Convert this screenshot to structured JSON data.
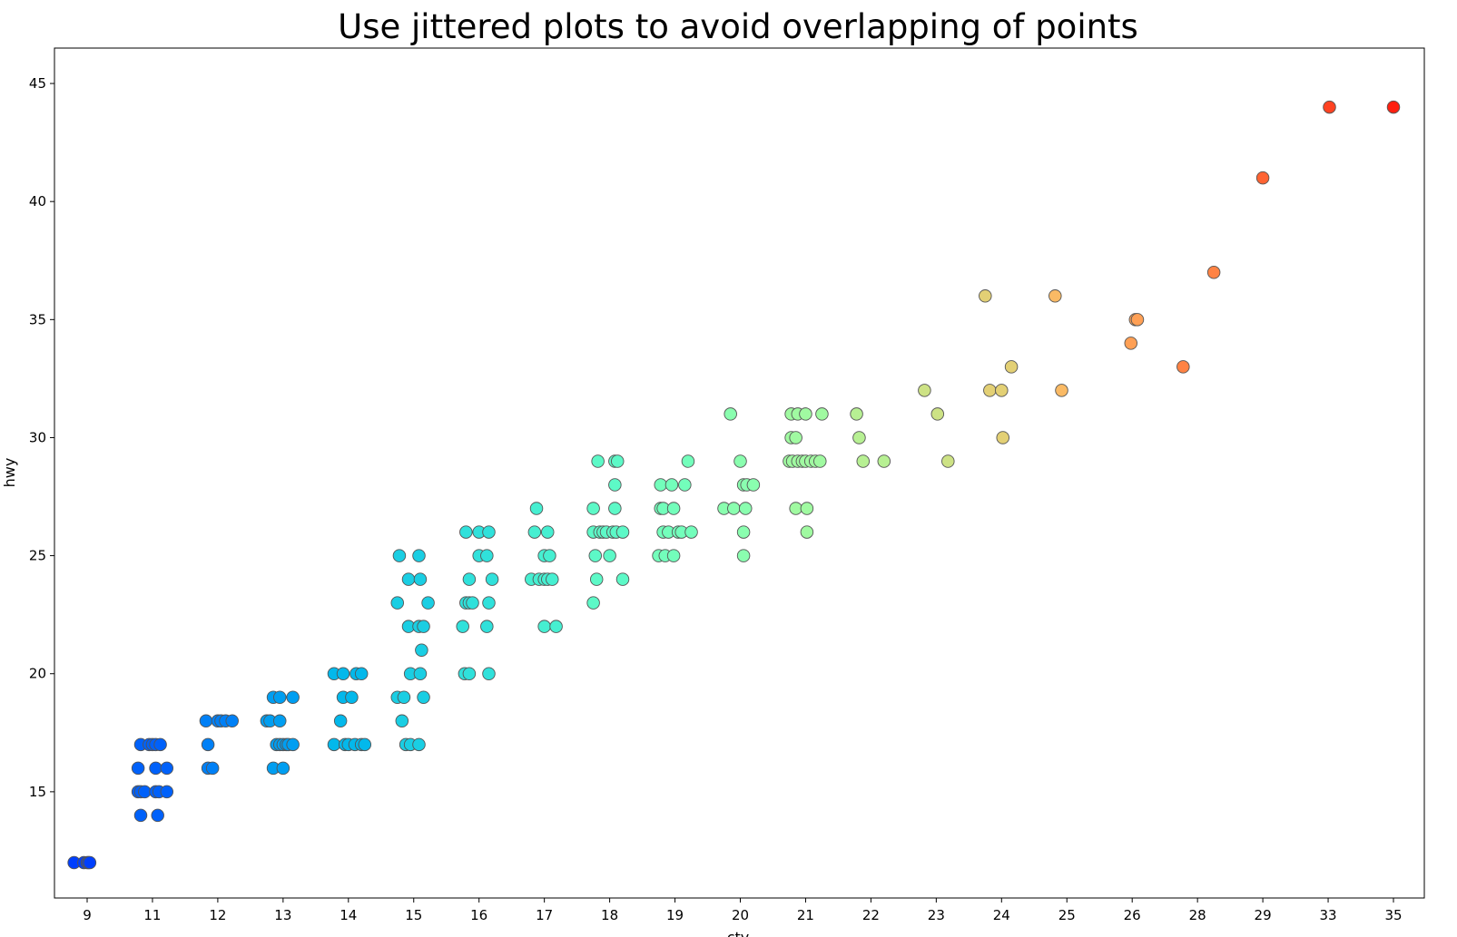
{
  "chart_data": {
    "type": "scatter",
    "title": "Use jittered plots to avoid overlapping of points",
    "xlabel": "cty",
    "ylabel": "hwy",
    "x_categories": [
      "9",
      "11",
      "12",
      "13",
      "14",
      "15",
      "16",
      "17",
      "18",
      "19",
      "20",
      "21",
      "22",
      "23",
      "24",
      "25",
      "26",
      "28",
      "29",
      "33",
      "35"
    ],
    "ylim": [
      10.5,
      46.5
    ],
    "yticks": [
      15,
      20,
      25,
      30,
      35,
      40,
      45
    ],
    "grid": false,
    "colormap": "rainbow",
    "points": [
      {
        "x": "9",
        "y": 12,
        "j": -0.2
      },
      {
        "x": "9",
        "y": 12,
        "j": -0.05
      },
      {
        "x": "9",
        "y": 12,
        "j": 0.0
      },
      {
        "x": "9",
        "y": 12,
        "j": 0.02
      },
      {
        "x": "9",
        "y": 12,
        "j": 0.04
      },
      {
        "x": "11",
        "y": 17,
        "j": -0.18
      },
      {
        "x": "11",
        "y": 17,
        "j": -0.05
      },
      {
        "x": "11",
        "y": 17,
        "j": 0.0
      },
      {
        "x": "11",
        "y": 17,
        "j": 0.05
      },
      {
        "x": "11",
        "y": 17,
        "j": 0.12
      },
      {
        "x": "11",
        "y": 16,
        "j": -0.22
      },
      {
        "x": "11",
        "y": 16,
        "j": 0.05
      },
      {
        "x": "11",
        "y": 16,
        "j": 0.22
      },
      {
        "x": "11",
        "y": 15,
        "j": -0.22
      },
      {
        "x": "11",
        "y": 15,
        "j": -0.18
      },
      {
        "x": "11",
        "y": 15,
        "j": -0.12
      },
      {
        "x": "11",
        "y": 15,
        "j": 0.05
      },
      {
        "x": "11",
        "y": 15,
        "j": 0.1
      },
      {
        "x": "11",
        "y": 15,
        "j": 0.22
      },
      {
        "x": "11",
        "y": 14,
        "j": -0.18
      },
      {
        "x": "11",
        "y": 14,
        "j": 0.08
      },
      {
        "x": "12",
        "y": 18,
        "j": -0.18
      },
      {
        "x": "12",
        "y": 18,
        "j": 0.0
      },
      {
        "x": "12",
        "y": 18,
        "j": 0.05
      },
      {
        "x": "12",
        "y": 18,
        "j": 0.12
      },
      {
        "x": "12",
        "y": 18,
        "j": 0.22
      },
      {
        "x": "12",
        "y": 17,
        "j": -0.15
      },
      {
        "x": "12",
        "y": 16,
        "j": -0.15
      },
      {
        "x": "12",
        "y": 16,
        "j": -0.08
      },
      {
        "x": "13",
        "y": 19,
        "j": -0.15
      },
      {
        "x": "13",
        "y": 19,
        "j": -0.05
      },
      {
        "x": "13",
        "y": 19,
        "j": 0.15
      },
      {
        "x": "13",
        "y": 18,
        "j": -0.25
      },
      {
        "x": "13",
        "y": 18,
        "j": -0.2
      },
      {
        "x": "13",
        "y": 18,
        "j": -0.05
      },
      {
        "x": "13",
        "y": 17,
        "j": -0.1
      },
      {
        "x": "13",
        "y": 17,
        "j": -0.05
      },
      {
        "x": "13",
        "y": 17,
        "j": 0.0
      },
      {
        "x": "13",
        "y": 17,
        "j": 0.05
      },
      {
        "x": "13",
        "y": 17,
        "j": 0.08
      },
      {
        "x": "13",
        "y": 17,
        "j": 0.15
      },
      {
        "x": "13",
        "y": 16,
        "j": -0.15
      },
      {
        "x": "13",
        "y": 16,
        "j": 0.0
      },
      {
        "x": "14",
        "y": 20,
        "j": -0.22
      },
      {
        "x": "14",
        "y": 20,
        "j": -0.08
      },
      {
        "x": "14",
        "y": 20,
        "j": 0.12
      },
      {
        "x": "14",
        "y": 20,
        "j": 0.2
      },
      {
        "x": "14",
        "y": 19,
        "j": -0.08
      },
      {
        "x": "14",
        "y": 19,
        "j": 0.05
      },
      {
        "x": "14",
        "y": 18,
        "j": -0.12
      },
      {
        "x": "14",
        "y": 17,
        "j": -0.22
      },
      {
        "x": "14",
        "y": 17,
        "j": -0.05
      },
      {
        "x": "14",
        "y": 17,
        "j": 0.0
      },
      {
        "x": "14",
        "y": 17,
        "j": 0.1
      },
      {
        "x": "14",
        "y": 17,
        "j": 0.2
      },
      {
        "x": "14",
        "y": 17,
        "j": 0.25
      },
      {
        "x": "15",
        "y": 25,
        "j": -0.22
      },
      {
        "x": "15",
        "y": 25,
        "j": 0.08
      },
      {
        "x": "15",
        "y": 24,
        "j": -0.08
      },
      {
        "x": "15",
        "y": 24,
        "j": 0.1
      },
      {
        "x": "15",
        "y": 23,
        "j": -0.25
      },
      {
        "x": "15",
        "y": 23,
        "j": 0.22
      },
      {
        "x": "15",
        "y": 22,
        "j": -0.08
      },
      {
        "x": "15",
        "y": 22,
        "j": 0.08
      },
      {
        "x": "15",
        "y": 22,
        "j": 0.15
      },
      {
        "x": "15",
        "y": 21,
        "j": 0.12
      },
      {
        "x": "15",
        "y": 20,
        "j": -0.05
      },
      {
        "x": "15",
        "y": 20,
        "j": 0.1
      },
      {
        "x": "15",
        "y": 19,
        "j": -0.25
      },
      {
        "x": "15",
        "y": 19,
        "j": -0.15
      },
      {
        "x": "15",
        "y": 19,
        "j": 0.15
      },
      {
        "x": "15",
        "y": 18,
        "j": -0.18
      },
      {
        "x": "15",
        "y": 17,
        "j": -0.12
      },
      {
        "x": "15",
        "y": 17,
        "j": -0.05
      },
      {
        "x": "15",
        "y": 17,
        "j": 0.08
      },
      {
        "x": "16",
        "y": 26,
        "j": -0.2
      },
      {
        "x": "16",
        "y": 26,
        "j": 0.0
      },
      {
        "x": "16",
        "y": 26,
        "j": 0.15
      },
      {
        "x": "16",
        "y": 25,
        "j": 0.0
      },
      {
        "x": "16",
        "y": 25,
        "j": 0.12
      },
      {
        "x": "16",
        "y": 24,
        "j": -0.15
      },
      {
        "x": "16",
        "y": 24,
        "j": 0.2
      },
      {
        "x": "16",
        "y": 23,
        "j": -0.2
      },
      {
        "x": "16",
        "y": 23,
        "j": -0.15
      },
      {
        "x": "16",
        "y": 23,
        "j": -0.1
      },
      {
        "x": "16",
        "y": 23,
        "j": 0.15
      },
      {
        "x": "16",
        "y": 22,
        "j": -0.25
      },
      {
        "x": "16",
        "y": 22,
        "j": 0.12
      },
      {
        "x": "16",
        "y": 20,
        "j": -0.22
      },
      {
        "x": "16",
        "y": 20,
        "j": -0.15
      },
      {
        "x": "16",
        "y": 20,
        "j": 0.15
      },
      {
        "x": "17",
        "y": 27,
        "j": -0.12
      },
      {
        "x": "17",
        "y": 26,
        "j": -0.15
      },
      {
        "x": "17",
        "y": 26,
        "j": 0.05
      },
      {
        "x": "17",
        "y": 25,
        "j": 0.0
      },
      {
        "x": "17",
        "y": 25,
        "j": 0.08
      },
      {
        "x": "17",
        "y": 24,
        "j": -0.2
      },
      {
        "x": "17",
        "y": 24,
        "j": -0.08
      },
      {
        "x": "17",
        "y": 24,
        "j": 0.0
      },
      {
        "x": "17",
        "y": 24,
        "j": 0.05
      },
      {
        "x": "17",
        "y": 24,
        "j": 0.12
      },
      {
        "x": "17",
        "y": 22,
        "j": 0.0
      },
      {
        "x": "17",
        "y": 22,
        "j": 0.18
      },
      {
        "x": "18",
        "y": 29,
        "j": -0.18
      },
      {
        "x": "18",
        "y": 29,
        "j": 0.08
      },
      {
        "x": "18",
        "y": 29,
        "j": 0.12
      },
      {
        "x": "18",
        "y": 28,
        "j": 0.08
      },
      {
        "x": "18",
        "y": 27,
        "j": -0.25
      },
      {
        "x": "18",
        "y": 27,
        "j": 0.08
      },
      {
        "x": "18",
        "y": 26,
        "j": -0.25
      },
      {
        "x": "18",
        "y": 26,
        "j": -0.15
      },
      {
        "x": "18",
        "y": 26,
        "j": -0.1
      },
      {
        "x": "18",
        "y": 26,
        "j": -0.05
      },
      {
        "x": "18",
        "y": 26,
        "j": 0.05
      },
      {
        "x": "18",
        "y": 26,
        "j": 0.1
      },
      {
        "x": "18",
        "y": 26,
        "j": 0.2
      },
      {
        "x": "18",
        "y": 25,
        "j": -0.22
      },
      {
        "x": "18",
        "y": 25,
        "j": 0.0
      },
      {
        "x": "18",
        "y": 24,
        "j": -0.2
      },
      {
        "x": "18",
        "y": 24,
        "j": 0.2
      },
      {
        "x": "18",
        "y": 23,
        "j": -0.25
      },
      {
        "x": "19",
        "y": 29,
        "j": 0.2
      },
      {
        "x": "19",
        "y": 28,
        "j": -0.22
      },
      {
        "x": "19",
        "y": 28,
        "j": -0.05
      },
      {
        "x": "19",
        "y": 28,
        "j": 0.15
      },
      {
        "x": "19",
        "y": 27,
        "j": -0.22
      },
      {
        "x": "19",
        "y": 27,
        "j": -0.18
      },
      {
        "x": "19",
        "y": 27,
        "j": -0.02
      },
      {
        "x": "19",
        "y": 26,
        "j": -0.18
      },
      {
        "x": "19",
        "y": 26,
        "j": -0.1
      },
      {
        "x": "19",
        "y": 26,
        "j": 0.05
      },
      {
        "x": "19",
        "y": 26,
        "j": 0.1
      },
      {
        "x": "19",
        "y": 26,
        "j": 0.25
      },
      {
        "x": "19",
        "y": 25,
        "j": -0.25
      },
      {
        "x": "19",
        "y": 25,
        "j": -0.15
      },
      {
        "x": "19",
        "y": 25,
        "j": -0.02
      },
      {
        "x": "20",
        "y": 31,
        "j": -0.15
      },
      {
        "x": "20",
        "y": 29,
        "j": 0.0
      },
      {
        "x": "20",
        "y": 28,
        "j": 0.05
      },
      {
        "x": "20",
        "y": 28,
        "j": 0.1
      },
      {
        "x": "20",
        "y": 28,
        "j": 0.2
      },
      {
        "x": "20",
        "y": 27,
        "j": -0.25
      },
      {
        "x": "20",
        "y": 27,
        "j": -0.1
      },
      {
        "x": "20",
        "y": 27,
        "j": 0.08
      },
      {
        "x": "20",
        "y": 26,
        "j": 0.05
      },
      {
        "x": "20",
        "y": 25,
        "j": 0.05
      },
      {
        "x": "21",
        "y": 31,
        "j": -0.22
      },
      {
        "x": "21",
        "y": 31,
        "j": -0.12
      },
      {
        "x": "21",
        "y": 31,
        "j": 0.0
      },
      {
        "x": "21",
        "y": 31,
        "j": 0.25
      },
      {
        "x": "21",
        "y": 30,
        "j": -0.22
      },
      {
        "x": "21",
        "y": 30,
        "j": -0.15
      },
      {
        "x": "21",
        "y": 29,
        "j": -0.25
      },
      {
        "x": "21",
        "y": 29,
        "j": -0.2
      },
      {
        "x": "21",
        "y": 29,
        "j": -0.12
      },
      {
        "x": "21",
        "y": 29,
        "j": -0.05
      },
      {
        "x": "21",
        "y": 29,
        "j": 0.0
      },
      {
        "x": "21",
        "y": 29,
        "j": 0.08
      },
      {
        "x": "21",
        "y": 29,
        "j": 0.15
      },
      {
        "x": "21",
        "y": 29,
        "j": 0.22
      },
      {
        "x": "21",
        "y": 27,
        "j": -0.15
      },
      {
        "x": "21",
        "y": 27,
        "j": 0.02
      },
      {
        "x": "21",
        "y": 26,
        "j": 0.02
      },
      {
        "x": "22",
        "y": 31,
        "j": -0.22
      },
      {
        "x": "22",
        "y": 30,
        "j": -0.18
      },
      {
        "x": "22",
        "y": 29,
        "j": -0.12
      },
      {
        "x": "22",
        "y": 29,
        "j": 0.2
      },
      {
        "x": "23",
        "y": 32,
        "j": -0.18
      },
      {
        "x": "23",
        "y": 31,
        "j": 0.02
      },
      {
        "x": "23",
        "y": 29,
        "j": 0.18
      },
      {
        "x": "24",
        "y": 36,
        "j": -0.25
      },
      {
        "x": "24",
        "y": 33,
        "j": 0.15
      },
      {
        "x": "24",
        "y": 32,
        "j": -0.18
      },
      {
        "x": "24",
        "y": 32,
        "j": 0.0
      },
      {
        "x": "24",
        "y": 30,
        "j": 0.02
      },
      {
        "x": "25",
        "y": 36,
        "j": -0.18
      },
      {
        "x": "25",
        "y": 32,
        "j": -0.08
      },
      {
        "x": "26",
        "y": 35,
        "j": 0.05
      },
      {
        "x": "26",
        "y": 35,
        "j": 0.08
      },
      {
        "x": "26",
        "y": 34,
        "j": -0.02
      },
      {
        "x": "28",
        "y": 37,
        "j": 0.25
      },
      {
        "x": "28",
        "y": 33,
        "j": -0.22
      },
      {
        "x": "29",
        "y": 41,
        "j": 0.0
      },
      {
        "x": "33",
        "y": 44,
        "j": 0.02
      },
      {
        "x": "35",
        "y": 44,
        "j": 0.0
      }
    ]
  }
}
